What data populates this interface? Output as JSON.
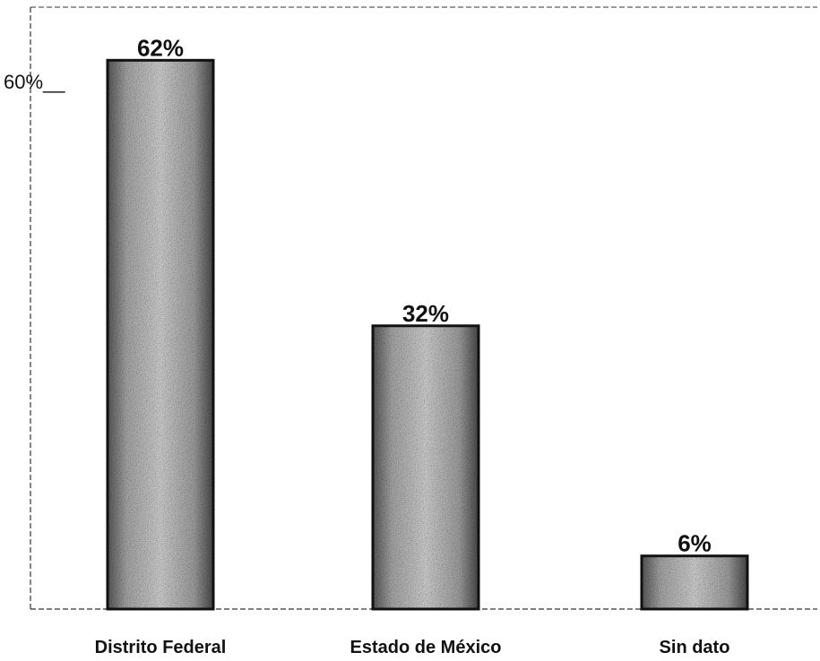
{
  "chart_data": {
    "type": "bar",
    "categories": [
      "Distrito Federal",
      "Estado de México",
      "Sin dato"
    ],
    "values": [
      62,
      32,
      6
    ],
    "value_labels": [
      "62%",
      "32%",
      "6%"
    ],
    "y_tick": {
      "value": 60,
      "label": "60%__"
    },
    "ylim": [
      0,
      68
    ],
    "title": "",
    "xlabel": "",
    "ylabel": "",
    "grid": false,
    "bar_fill": "#9a9a9a",
    "bar_edge": "#111111"
  }
}
